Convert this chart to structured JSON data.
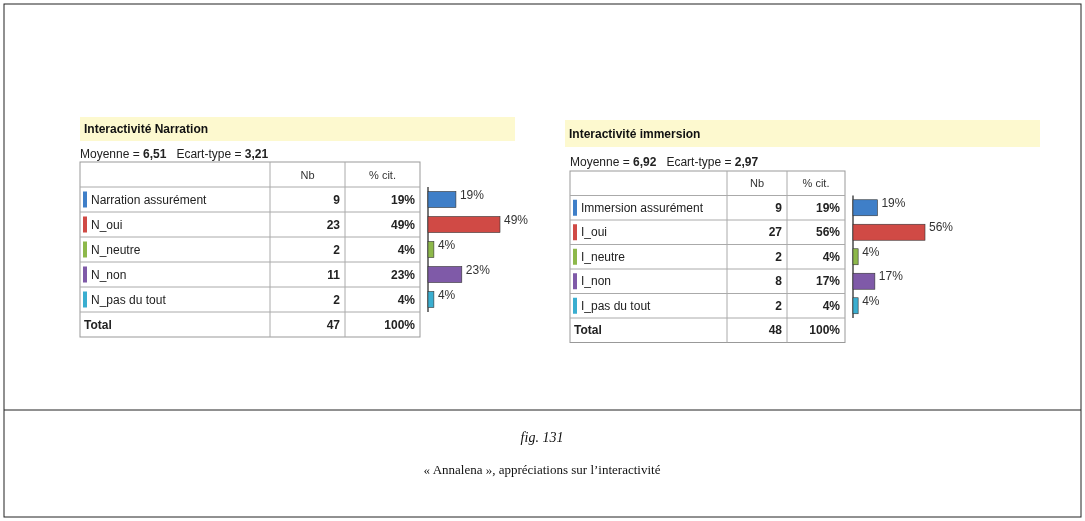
{
  "chart_data": [
    {
      "type": "bar",
      "orientation": "horizontal",
      "title": "Interactivité Narration",
      "subtitle": "Moyenne = 6,51   Ecart-type = 3,21",
      "categories": [
        "Narration assurément",
        "N_oui",
        "N_neutre",
        "N_non",
        "N_pas du tout"
      ],
      "values": [
        19,
        49,
        4,
        23,
        4
      ],
      "colors": [
        "#3f7fc8",
        "#d04a45",
        "#8db84a",
        "#7f5aa8",
        "#3aaed0"
      ],
      "value_labels": [
        "19%",
        "49%",
        "4%",
        "23%",
        "4%"
      ],
      "annotations": [
        "Nb",
        "% cit.",
        "Total",
        "47",
        "100%",
        "9",
        "23",
        "2",
        "11",
        "2"
      ]
    },
    {
      "type": "bar",
      "orientation": "horizontal",
      "title": "Interactivité immersion",
      "subtitle": "Moyenne = 6,92   Ecart-type = 2,97",
      "categories": [
        "Immersion assurément",
        "I_oui",
        "I_neutre",
        "I_non",
        "I_pas du tout"
      ],
      "values": [
        19,
        56,
        4,
        17,
        4
      ],
      "colors": [
        "#3f7fc8",
        "#d04a45",
        "#8db84a",
        "#7f5aa8",
        "#3aaed0"
      ],
      "value_labels": [
        "19%",
        "56%",
        "4%",
        "17%",
        "4%"
      ],
      "annotations": [
        "Nb",
        "% cit.",
        "Total",
        "48",
        "100%",
        "9",
        "27",
        "2",
        "8",
        "2"
      ]
    },
    {
      "type": "other",
      "title": "fig. 131",
      "subtitle": "« Annalena », appréciations sur l’interactivité"
    }
  ]
}
